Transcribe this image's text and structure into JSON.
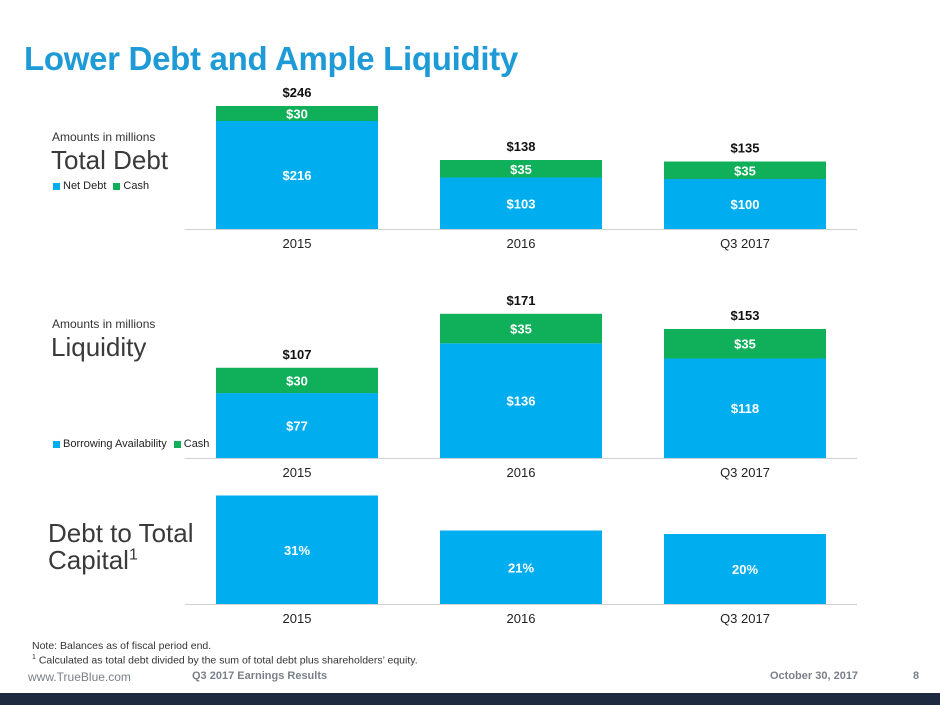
{
  "colors": {
    "accent": "#1e9bd7",
    "series_primary": "#00aeef",
    "series_cash": "#10b05a",
    "footer_band": "#1d2a3f"
  },
  "slide": {
    "title": "Lower Debt and Ample Liquidity"
  },
  "sections": {
    "debt": {
      "amounts_note": "Amounts in millions",
      "label": "Total Debt",
      "legend": [
        "Net Debt",
        "Cash"
      ]
    },
    "liquidity": {
      "amounts_note": "Amounts in millions",
      "label": "Liquidity",
      "legend": [
        "Borrowing Availability",
        "Cash"
      ]
    },
    "capital": {
      "label_line1": "Debt to Total",
      "label_line2": "Capital",
      "superscript": "1"
    }
  },
  "chart_data": [
    {
      "type": "bar",
      "stacked": true,
      "categories": [
        "2015",
        "2016",
        "Q3 2017"
      ],
      "series": [
        {
          "name": "Net Debt",
          "values": [
            216,
            103,
            100
          ],
          "labels": [
            "$216",
            "$103",
            "$100"
          ]
        },
        {
          "name": "Cash",
          "values": [
            30,
            35,
            35
          ],
          "labels": [
            "$30",
            "$35",
            "$35"
          ]
        }
      ],
      "totals": [
        246,
        138,
        135
      ],
      "total_labels": [
        "$246",
        "$138",
        "$135"
      ]
    },
    {
      "type": "bar",
      "stacked": true,
      "categories": [
        "2015",
        "2016",
        "Q3 2017"
      ],
      "series": [
        {
          "name": "Borrowing Availability",
          "values": [
            77,
            136,
            118
          ],
          "labels": [
            "$77",
            "$136",
            "$118"
          ]
        },
        {
          "name": "Cash",
          "values": [
            30,
            35,
            35
          ],
          "labels": [
            "$30",
            "$35",
            "$35"
          ]
        }
      ],
      "totals": [
        107,
        171,
        153
      ],
      "total_labels": [
        "$107",
        "$171",
        "$153"
      ]
    },
    {
      "type": "bar",
      "categories": [
        "2015",
        "2016",
        "Q3 2017"
      ],
      "series": [
        {
          "values": [
            31,
            21,
            20
          ],
          "labels": [
            "31%",
            "21%",
            "20%"
          ]
        }
      ]
    }
  ],
  "notes": {
    "line1": "Note: Balances as of fiscal period end.",
    "line2_marker": "1",
    "line2": " Calculated as total debt divided by the sum of total debt plus shareholders’ equity."
  },
  "footer": {
    "url": "www.TrueBlue.com",
    "doc": "Q3 2017 Earnings Results",
    "date": "October 30, 2017",
    "page": "8"
  }
}
